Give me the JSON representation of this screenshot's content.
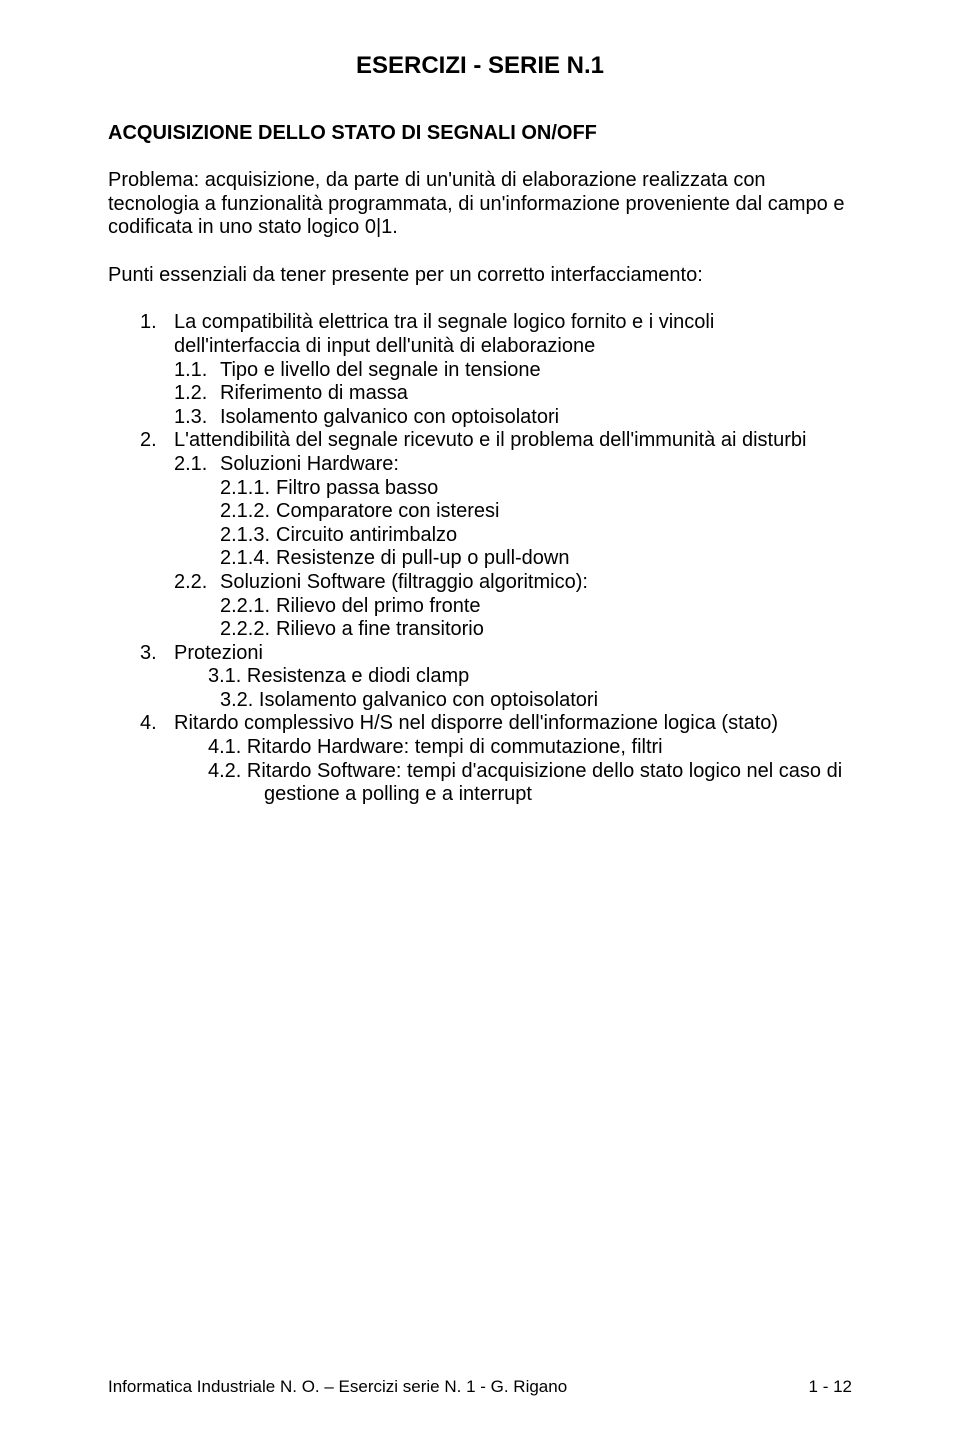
{
  "title": "ESERCIZI - SERIE N.1",
  "subtitle": "ACQUISIZIONE DELLO STATO DI SEGNALI ON/OFF",
  "problem": "Problema: acquisizione, da parte di un'unità di elaborazione realizzata con tecnologia a funzionalità programmata, di un'informazione proveniente dal campo e codificata in uno stato logico  0|1.",
  "points_intro": "Punti essenziali da tener presente per un corretto interfacciamento:",
  "items": {
    "n1": "1.",
    "t1a": "La compatibilità elettrica tra il segnale logico fornito e i vincoli",
    "t1b": "dell'interfaccia di input dell'unità di elaborazione",
    "n11": "1.1.",
    "t11": "Tipo e livello del segnale in tensione",
    "n12": "1.2.",
    "t12": "Riferimento di massa",
    "n13": "1.3.",
    "t13": "Isolamento galvanico con optoisolatori",
    "n2": "2.",
    "t2": "L'attendibilità del segnale ricevuto e il problema dell'immunità ai disturbi",
    "n21": "2.1.",
    "t21": "Soluzioni Hardware:",
    "n211": "2.1.1.",
    "t211": "Filtro passa basso",
    "n212": "2.1.2.",
    "t212": "Comparatore con isteresi",
    "n213": "2.1.3.",
    "t213": "Circuito antirimbalzo",
    "n214": "2.1.4.",
    "t214": "Resistenze di pull-up o pull-down",
    "n22": "2.2.",
    "t22": "Soluzioni Software (filtraggio algoritmico):",
    "n221": "2.2.1.",
    "t221": "Rilievo del primo fronte",
    "n222": "2.2.2.",
    "t222": "Rilievo a fine transitorio",
    "n3": "3.",
    "t3": "Protezioni",
    "n31": "3.1.",
    "t31": "Resistenza e diodi clamp",
    "n32": "3.2.",
    "t32": "Isolamento galvanico con optoisolatori",
    "n4": "4.",
    "t4": "Ritardo complessivo H/S nel disporre dell'informazione logica (stato)",
    "n41": "4.1.",
    "t41": "Ritardo Hardware: tempi di commutazione, filtri",
    "n42": "4.2.",
    "t42a": "Ritardo Software: tempi d'acquisizione dello stato logico nel caso di",
    "t42b": "gestione a polling e a interrupt"
  },
  "footer_left": "Informatica Industriale N. O. – Esercizi serie N. 1 - G. Rigano",
  "footer_right": "1 - 12"
}
